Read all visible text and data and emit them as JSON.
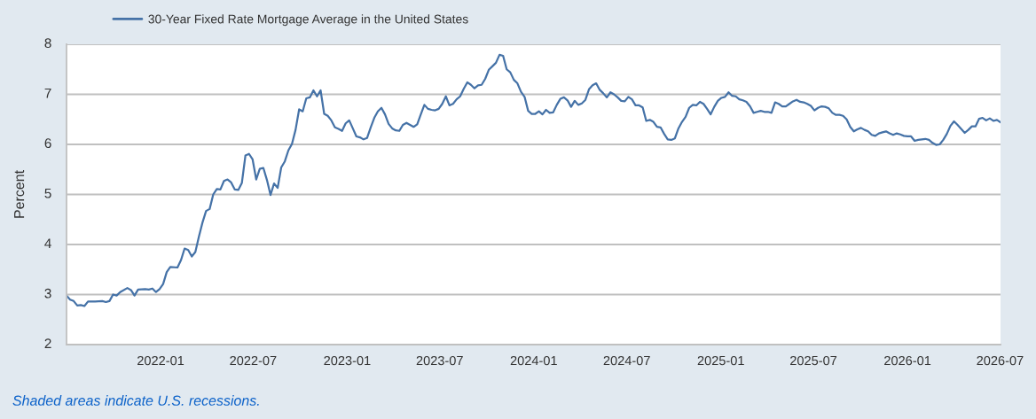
{
  "chart_data": {
    "type": "line",
    "ylabel": "Percent",
    "x": [
      "2021-07-01",
      "2021-07-08",
      "2021-07-15",
      "2021-07-22",
      "2021-07-29",
      "2021-08-05",
      "2021-08-12",
      "2021-08-26",
      "2021-09-09",
      "2021-09-16",
      "2021-09-23",
      "2021-09-30",
      "2021-10-07",
      "2021-10-14",
      "2021-10-28",
      "2021-11-04",
      "2021-11-11",
      "2021-11-18",
      "2021-12-02",
      "2021-12-09",
      "2021-12-16",
      "2021-12-23",
      "2021-12-30",
      "2022-01-06",
      "2022-01-13",
      "2022-01-20",
      "2022-02-03",
      "2022-02-10",
      "2022-02-17",
      "2022-02-24",
      "2022-03-03",
      "2022-03-10",
      "2022-03-17",
      "2022-03-24",
      "2022-03-31",
      "2022-04-07",
      "2022-04-14",
      "2022-04-21",
      "2022-04-28",
      "2022-05-05",
      "2022-05-12",
      "2022-05-19",
      "2022-05-26",
      "2022-06-02",
      "2022-06-09",
      "2022-06-16",
      "2022-06-23",
      "2022-06-30",
      "2022-07-07",
      "2022-07-14",
      "2022-07-21",
      "2022-07-28",
      "2022-08-04",
      "2022-08-11",
      "2022-08-18",
      "2022-08-25",
      "2022-09-01",
      "2022-09-08",
      "2022-09-15",
      "2022-09-22",
      "2022-09-29",
      "2022-10-06",
      "2022-10-13",
      "2022-10-20",
      "2022-10-27",
      "2022-11-03",
      "2022-11-10",
      "2022-11-17",
      "2022-11-24",
      "2022-12-01",
      "2022-12-08",
      "2022-12-15",
      "2022-12-22",
      "2022-12-29",
      "2023-01-05",
      "2023-01-12",
      "2023-01-19",
      "2023-01-26",
      "2023-02-02",
      "2023-02-09",
      "2023-02-16",
      "2023-02-23",
      "2023-03-02",
      "2023-03-09",
      "2023-03-16",
      "2023-03-23",
      "2023-03-30",
      "2023-04-06",
      "2023-04-13",
      "2023-04-20",
      "2023-04-27",
      "2023-05-04",
      "2023-05-11",
      "2023-05-18",
      "2023-05-25",
      "2023-06-01",
      "2023-06-08",
      "2023-06-15",
      "2023-06-22",
      "2023-06-29",
      "2023-07-06",
      "2023-07-13",
      "2023-07-20",
      "2023-07-27",
      "2023-08-03",
      "2023-08-10",
      "2023-08-17",
      "2023-08-24",
      "2023-08-31",
      "2023-09-07",
      "2023-09-14",
      "2023-09-21",
      "2023-09-28",
      "2023-10-05",
      "2023-10-12",
      "2023-10-19",
      "2023-10-26",
      "2023-11-02",
      "2023-11-09",
      "2023-11-16",
      "2023-11-23",
      "2023-11-30",
      "2023-12-07",
      "2023-12-14",
      "2023-12-21",
      "2023-12-28",
      "2024-01-04",
      "2024-01-11",
      "2024-01-18",
      "2024-01-25",
      "2024-02-01",
      "2024-02-08",
      "2024-02-15",
      "2024-02-22",
      "2024-02-29",
      "2024-03-07",
      "2024-03-14",
      "2024-03-21",
      "2024-03-28",
      "2024-04-04",
      "2024-04-11",
      "2024-04-18",
      "2024-04-25",
      "2024-05-02",
      "2024-05-09",
      "2024-05-16",
      "2024-05-23",
      "2024-05-30",
      "2024-06-06",
      "2024-06-13",
      "2024-06-20",
      "2024-06-27",
      "2024-07-04",
      "2024-07-11",
      "2024-07-18",
      "2024-07-25",
      "2024-08-01",
      "2024-08-08",
      "2024-08-15",
      "2024-08-22",
      "2024-08-29",
      "2024-09-05",
      "2024-09-12",
      "2024-09-19",
      "2024-09-26",
      "2024-10-03",
      "2024-10-10",
      "2024-10-17",
      "2024-10-24",
      "2024-10-31",
      "2024-11-07",
      "2024-11-14",
      "2024-11-21",
      "2024-11-28",
      "2024-12-05",
      "2024-12-12",
      "2024-12-19",
      "2024-12-26",
      "2025-01-02",
      "2025-01-09",
      "2025-01-16",
      "2025-01-23",
      "2025-01-30",
      "2025-02-06",
      "2025-02-13",
      "2025-02-20",
      "2025-02-27",
      "2025-03-06",
      "2025-03-13",
      "2025-03-20",
      "2025-03-27",
      "2025-04-03",
      "2025-04-10",
      "2025-04-17",
      "2025-04-24",
      "2025-05-01",
      "2025-05-08",
      "2025-05-15",
      "2025-05-22",
      "2025-05-29",
      "2025-06-05",
      "2025-06-12",
      "2025-06-19",
      "2025-06-26",
      "2025-07-03",
      "2025-07-10",
      "2025-07-17",
      "2025-07-24",
      "2025-07-31",
      "2025-08-07",
      "2025-08-14",
      "2025-08-21",
      "2025-08-28",
      "2025-09-04",
      "2025-09-11",
      "2025-09-18",
      "2025-09-25",
      "2025-10-02",
      "2025-10-09",
      "2025-10-16",
      "2025-10-23",
      "2025-10-30",
      "2025-11-06",
      "2025-11-13",
      "2025-11-20",
      "2025-11-27",
      "2025-12-04",
      "2025-12-11",
      "2025-12-18",
      "2025-12-25",
      "2026-01-01",
      "2026-01-08",
      "2026-01-15",
      "2026-01-22",
      "2026-01-29",
      "2026-02-05",
      "2026-02-12",
      "2026-02-19",
      "2026-02-26",
      "2026-03-05",
      "2026-03-12",
      "2026-03-19",
      "2026-03-26",
      "2026-04-02",
      "2026-04-09",
      "2026-04-16",
      "2026-04-23",
      "2026-04-30",
      "2026-05-07",
      "2026-05-14",
      "2026-05-21",
      "2026-05-28",
      "2026-06-04",
      "2026-06-11",
      "2026-06-18",
      "2026-06-25",
      "2026-07-02"
    ],
    "series": [
      {
        "name": "30-Year Fixed Rate Mortgage Average in the United States",
        "color": "#4572a7",
        "values": [
          2.98,
          2.9,
          2.87,
          2.78,
          2.79,
          2.77,
          2.86,
          2.86,
          2.87,
          2.85,
          2.87,
          3.0,
          2.98,
          3.05,
          3.13,
          3.09,
          2.98,
          3.1,
          3.11,
          3.1,
          3.12,
          3.05,
          3.11,
          3.21,
          3.45,
          3.55,
          3.54,
          3.69,
          3.92,
          3.89,
          3.76,
          3.85,
          4.16,
          4.44,
          4.67,
          4.71,
          5.0,
          5.11,
          5.1,
          5.27,
          5.3,
          5.24,
          5.1,
          5.09,
          5.23,
          5.78,
          5.81,
          5.7,
          5.3,
          5.51,
          5.53,
          5.29,
          4.99,
          5.22,
          5.13,
          5.54,
          5.66,
          5.88,
          6.01,
          6.29,
          6.7,
          6.66,
          6.92,
          6.94,
          7.08,
          6.96,
          7.08,
          6.61,
          6.57,
          6.48,
          6.34,
          6.31,
          6.27,
          6.42,
          6.48,
          6.32,
          6.16,
          6.14,
          6.1,
          6.13,
          6.34,
          6.53,
          6.66,
          6.73,
          6.6,
          6.41,
          6.32,
          6.28,
          6.27,
          6.39,
          6.43,
          6.39,
          6.35,
          6.4,
          6.6,
          6.79,
          6.71,
          6.69,
          6.68,
          6.71,
          6.81,
          6.96,
          6.78,
          6.81,
          6.9,
          6.96,
          7.11,
          7.24,
          7.19,
          7.12,
          7.18,
          7.19,
          7.31,
          7.49,
          7.56,
          7.63,
          7.79,
          7.77,
          7.5,
          7.44,
          7.29,
          7.22,
          7.05,
          6.95,
          6.67,
          6.61,
          6.61,
          6.66,
          6.6,
          6.69,
          6.63,
          6.64,
          6.79,
          6.91,
          6.94,
          6.88,
          6.75,
          6.87,
          6.79,
          6.82,
          6.89,
          7.1,
          7.18,
          7.22,
          7.09,
          7.02,
          6.94,
          7.04,
          7.0,
          6.94,
          6.87,
          6.86,
          6.95,
          6.9,
          6.78,
          6.78,
          6.74,
          6.47,
          6.49,
          6.45,
          6.35,
          6.34,
          6.21,
          6.1,
          6.09,
          6.12,
          6.32,
          6.45,
          6.55,
          6.73,
          6.79,
          6.78,
          6.85,
          6.81,
          6.71,
          6.6,
          6.75,
          6.87,
          6.93,
          6.95,
          7.04,
          6.97,
          6.96,
          6.9,
          6.88,
          6.85,
          6.76,
          6.63,
          6.65,
          6.67,
          6.65,
          6.65,
          6.63,
          6.84,
          6.81,
          6.76,
          6.76,
          6.81,
          6.86,
          6.89,
          6.85,
          6.84,
          6.81,
          6.77,
          6.68,
          6.73,
          6.76,
          6.75,
          6.72,
          6.63,
          6.59,
          6.59,
          6.57,
          6.5,
          6.35,
          6.26,
          6.3,
          6.33,
          6.29,
          6.26,
          6.19,
          6.17,
          6.22,
          6.24,
          6.26,
          6.22,
          6.19,
          6.22,
          6.2,
          6.17,
          6.16,
          6.16,
          6.07,
          6.09,
          6.1,
          6.11,
          6.09,
          6.03,
          5.99,
          6.0,
          6.09,
          6.21,
          6.37,
          6.46,
          6.39,
          6.31,
          6.23,
          6.29,
          6.36,
          6.36,
          6.51,
          6.53,
          6.48,
          6.52,
          6.47,
          6.49,
          6.44
        ]
      }
    ],
    "xlim": [
      "2021-07-01",
      "2026-07-02"
    ],
    "xticks": [
      "2022-01",
      "2022-07",
      "2023-01",
      "2023-07",
      "2024-01",
      "2024-07",
      "2025-01",
      "2025-07",
      "2026-01",
      "2026-07"
    ],
    "ylim": [
      2,
      8
    ],
    "yticks": [
      2,
      3,
      4,
      5,
      6,
      7,
      8
    ],
    "grid": "y",
    "legend": "top left",
    "annotations": [
      "Shaded areas indicate U.S. recessions."
    ]
  }
}
